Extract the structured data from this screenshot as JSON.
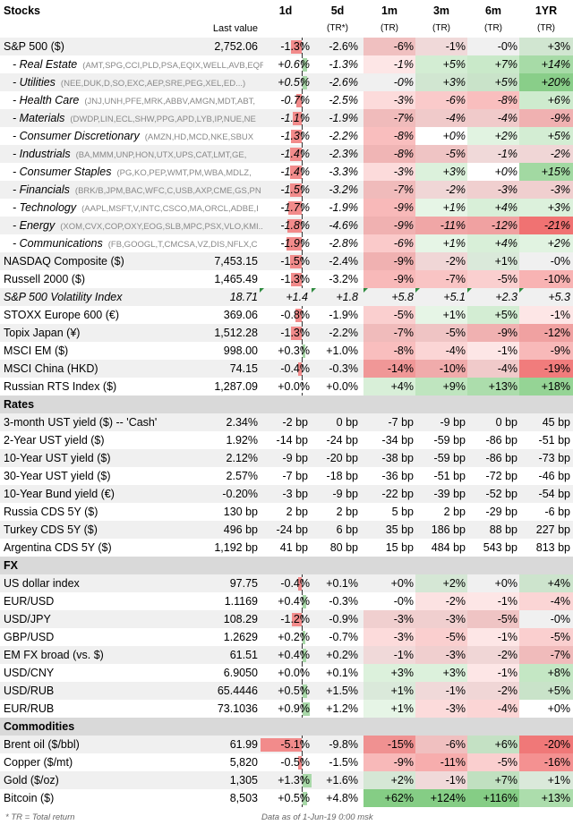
{
  "header": {
    "title": "Stocks",
    "last_value": "Last value",
    "periods": [
      "1d",
      "5d",
      "1m",
      "3m",
      "6m",
      "1YR"
    ],
    "subs": [
      "",
      "(TR*)",
      "(TR)",
      "(TR)",
      "(TR)",
      "(TR)"
    ]
  },
  "sections": [
    {
      "title": "Stocks",
      "rows": [
        {
          "name": "S&P 500 ($)",
          "value": "2,752.06",
          "d1": "-1.3%",
          "d1n": -1.3,
          "d5": "-2.6%",
          "m1": "-6%",
          "m3": "-1%",
          "m6": "-0%",
          "y1": "+3%"
        },
        {
          "name": "- Real Estate",
          "tick": "(AMT,SPG,CCI,PLD,PSA,EQIX,WELL,AVB,EQR",
          "sub": true,
          "value": "",
          "d1": "+0.6%",
          "d1n": 0.6,
          "d5": "-1.3%",
          "m1": "-1%",
          "m3": "+5%",
          "m6": "+7%",
          "y1": "+14%"
        },
        {
          "name": "- Utilities",
          "tick": "(NEE,DUK,D,SO,EXC,AEP,SRE,PEG,XEL,ED...)",
          "sub": true,
          "value": "",
          "d1": "+0.5%",
          "d1n": 0.5,
          "d5": "-2.6%",
          "m1": "-0%",
          "m3": "+3%",
          "m6": "+5%",
          "y1": "+20%"
        },
        {
          "name": "- Health Care",
          "tick": "(JNJ,UNH,PFE,MRK,ABBV,AMGN,MDT,ABT,",
          "sub": true,
          "value": "",
          "d1": "-0.7%",
          "d1n": -0.7,
          "d5": "-2.5%",
          "m1": "-3%",
          "m3": "-6%",
          "m6": "-8%",
          "y1": "+6%"
        },
        {
          "name": "- Materials",
          "tick": "(DWDP,LIN,ECL,SHW,PPG,APD,LYB,IP,NUE,NE",
          "sub": true,
          "value": "",
          "d1": "-1.1%",
          "d1n": -1.1,
          "d5": "-1.9%",
          "m1": "-7%",
          "m3": "-4%",
          "m6": "-4%",
          "y1": "-9%"
        },
        {
          "name": "- Consumer Discretionary",
          "tick": "(AMZN,HD,MCD,NKE,SBUX",
          "sub": true,
          "value": "",
          "d1": "-1.3%",
          "d1n": -1.3,
          "d5": "-2.2%",
          "m1": "-8%",
          "m3": "+0%",
          "m6": "+2%",
          "y1": "+5%"
        },
        {
          "name": "- Industrials",
          "tick": "(BA,MMM,UNP,HON,UTX,UPS,CAT,LMT,GE,",
          "sub": true,
          "value": "",
          "d1": "-1.4%",
          "d1n": -1.4,
          "d5": "-2.3%",
          "m1": "-8%",
          "m3": "-5%",
          "m6": "-1%",
          "y1": "-2%"
        },
        {
          "name": "- Consumer Staples",
          "tick": "(PG,KO,PEP,WMT,PM,WBA,MDLZ,",
          "sub": true,
          "value": "",
          "d1": "-1.4%",
          "d1n": -1.4,
          "d5": "-3.3%",
          "m1": "-3%",
          "m3": "+3%",
          "m6": "+0%",
          "y1": "+15%"
        },
        {
          "name": "- Financials",
          "tick": "(BRK/B,JPM,BAC,WFC,C,USB,AXP,CME,GS,PN",
          "sub": true,
          "value": "",
          "d1": "-1.5%",
          "d1n": -1.5,
          "d5": "-3.2%",
          "m1": "-7%",
          "m3": "-2%",
          "m6": "-3%",
          "y1": "-3%"
        },
        {
          "name": "- Technology",
          "tick": "(AAPL,MSFT,V,INTC,CSCO,MA,ORCL,ADBE,I",
          "sub": true,
          "value": "",
          "d1": "-1.7%",
          "d1n": -1.7,
          "d5": "-1.9%",
          "m1": "-9%",
          "m3": "+1%",
          "m6": "+4%",
          "y1": "+3%"
        },
        {
          "name": "- Energy",
          "tick": "(XOM,CVX,COP,OXY,EOG,SLB,MPC,PSX,VLO,KMI..",
          "sub": true,
          "value": "",
          "d1": "-1.8%",
          "d1n": -1.8,
          "d5": "-4.6%",
          "m1": "-9%",
          "m3": "-11%",
          "m6": "-12%",
          "y1": "-21%"
        },
        {
          "name": "- Communications",
          "tick": "(FB,GOOGL,T,CMCSA,VZ,DIS,NFLX,C",
          "sub": true,
          "value": "",
          "d1": "-1.9%",
          "d1n": -1.9,
          "d5": "-2.8%",
          "m1": "-6%",
          "m3": "+1%",
          "m6": "+4%",
          "y1": "+2%"
        },
        {
          "name": "NASDAQ Composite ($)",
          "value": "7,453.15",
          "d1": "-1.5%",
          "d1n": -1.5,
          "d5": "-2.4%",
          "m1": "-9%",
          "m3": "-2%",
          "m6": "+1%",
          "y1": "-0%"
        },
        {
          "name": "Russell 2000 ($)",
          "value": "1,465.49",
          "d1": "-1.3%",
          "d1n": -1.3,
          "d5": "-3.2%",
          "m1": "-9%",
          "m3": "-7%",
          "m6": "-5%",
          "y1": "-10%"
        },
        {
          "name": "S&P 500 Volatility Index",
          "ital": true,
          "value": "18.71",
          "d1": "+1.4",
          "d1n": 0,
          "plain": true,
          "d5": "+1.8",
          "m1": "+5.8",
          "m3": "+5.1",
          "m6": "+2.3",
          "y1": "+5.3"
        },
        {
          "name": "STOXX Europe 600 (€)",
          "value": "369.06",
          "d1": "-0.8%",
          "d1n": -0.8,
          "d5": "-1.9%",
          "m1": "-5%",
          "m3": "+1%",
          "m6": "+5%",
          "y1": "-1%"
        },
        {
          "name": "Topix Japan (¥)",
          "value": "1,512.28",
          "d1": "-1.3%",
          "d1n": -1.3,
          "d5": "-2.2%",
          "m1": "-7%",
          "m3": "-5%",
          "m6": "-9%",
          "y1": "-12%"
        },
        {
          "name": "MSCI EM ($)",
          "value": "998.00",
          "d1": "+0.3%",
          "d1n": 0.3,
          "d5": "+1.0%",
          "m1": "-8%",
          "m3": "-4%",
          "m6": "-1%",
          "y1": "-9%"
        },
        {
          "name": "MSCI China (HKD)",
          "value": "74.15",
          "d1": "-0.4%",
          "d1n": -0.4,
          "d5": "-0.3%",
          "m1": "-14%",
          "m3": "-10%",
          "m6": "-4%",
          "y1": "-19%"
        },
        {
          "name": "Russian RTS Index ($)",
          "value": "1,287.09",
          "d1": "+0.0%",
          "d1n": 0.0,
          "d5": "+0.0%",
          "m1": "+4%",
          "m3": "+9%",
          "m6": "+13%",
          "y1": "+18%"
        }
      ]
    },
    {
      "title": "Rates",
      "bp": true,
      "rows": [
        {
          "name": "3-month UST yield ($) -- 'Cash'",
          "value": "2.34%",
          "d1": "-2 bp",
          "d5": "0 bp",
          "m1": "-7 bp",
          "m3": "-9 bp",
          "m6": "0 bp",
          "y1": "45 bp"
        },
        {
          "name": "2-Year UST yield ($)",
          "value": "1.92%",
          "d1": "-14 bp",
          "d5": "-24 bp",
          "m1": "-34 bp",
          "m3": "-59 bp",
          "m6": "-86 bp",
          "y1": "-51 bp"
        },
        {
          "name": "10-Year UST yield ($)",
          "value": "2.12%",
          "d1": "-9 bp",
          "d5": "-20 bp",
          "m1": "-38 bp",
          "m3": "-59 bp",
          "m6": "-86 bp",
          "y1": "-73 bp"
        },
        {
          "name": "30-Year UST yield ($)",
          "value": "2.57%",
          "d1": "-7 bp",
          "d5": "-18 bp",
          "m1": "-36 bp",
          "m3": "-51 bp",
          "m6": "-72 bp",
          "y1": "-46 bp"
        },
        {
          "name": "10-Year Bund yield (€)",
          "value": "-0.20%",
          "d1": "-3 bp",
          "d5": "-9 bp",
          "m1": "-22 bp",
          "m3": "-39 bp",
          "m6": "-52 bp",
          "y1": "-54 bp"
        },
        {
          "name": "Russia CDS 5Y ($)",
          "value": "130 bp",
          "d1": "2 bp",
          "d5": "2 bp",
          "m1": "5 bp",
          "m3": "2 bp",
          "m6": "-29 bp",
          "y1": "-6 bp"
        },
        {
          "name": "Turkey CDS 5Y ($)",
          "value": "496 bp",
          "d1": "-24 bp",
          "d5": "6 bp",
          "m1": "35 bp",
          "m3": "186 bp",
          "m6": "88 bp",
          "y1": "227 bp"
        },
        {
          "name": "Argentina CDS 5Y ($)",
          "value": "1,192 bp",
          "d1": "41 bp",
          "d5": "80 bp",
          "m1": "15 bp",
          "m3": "484 bp",
          "m6": "543 bp",
          "y1": "813 bp"
        }
      ]
    },
    {
      "title": "FX",
      "rows": [
        {
          "name": "US dollar index",
          "value": "97.75",
          "d1": "-0.4%",
          "d1n": -0.4,
          "d5": "+0.1%",
          "m1": "+0%",
          "m3": "+2%",
          "m6": "+0%",
          "y1": "+4%"
        },
        {
          "name": "EUR/USD",
          "value": "1.1169",
          "d1": "+0.4%",
          "d1n": 0.4,
          "d5": "-0.3%",
          "m1": "-0%",
          "m3": "-2%",
          "m6": "-1%",
          "y1": "-4%"
        },
        {
          "name": "USD/JPY",
          "value": "108.29",
          "d1": "-1.2%",
          "d1n": -1.2,
          "d5": "-0.9%",
          "m1": "-3%",
          "m3": "-3%",
          "m6": "-5%",
          "y1": "-0%"
        },
        {
          "name": "GBP/USD",
          "value": "1.2629",
          "d1": "+0.2%",
          "d1n": 0.2,
          "d5": "-0.7%",
          "m1": "-3%",
          "m3": "-5%",
          "m6": "-1%",
          "y1": "-5%"
        },
        {
          "name": "EM FX broad (vs. $)",
          "value": "61.51",
          "d1": "+0.4%",
          "d1n": 0.4,
          "d5": "+0.2%",
          "m1": "-1%",
          "m3": "-3%",
          "m6": "-2%",
          "y1": "-7%"
        },
        {
          "name": "USD/CNY",
          "value": "6.9050",
          "d1": "+0.0%",
          "d1n": 0.0,
          "d5": "+0.1%",
          "m1": "+3%",
          "m3": "+3%",
          "m6": "-1%",
          "y1": "+8%"
        },
        {
          "name": "USD/RUB",
          "value": "65.4446",
          "d1": "+0.5%",
          "d1n": 0.5,
          "d5": "+1.5%",
          "m1": "+1%",
          "m3": "-1%",
          "m6": "-2%",
          "y1": "+5%"
        },
        {
          "name": "EUR/RUB",
          "value": "73.1036",
          "d1": "+0.9%",
          "d1n": 0.9,
          "d5": "+1.2%",
          "m1": "+1%",
          "m3": "-3%",
          "m6": "-4%",
          "y1": "+0%"
        }
      ]
    },
    {
      "title": "Commodities",
      "rows": [
        {
          "name": "Brent oil ($/bbl)",
          "value": "61.99",
          "d1": "-5.1%",
          "d1n": -5.1,
          "d5": "-9.8%",
          "m1": "-15%",
          "m3": "-6%",
          "m6": "+6%",
          "y1": "-20%"
        },
        {
          "name": "Copper ($/mt)",
          "value": "5,820",
          "d1": "-0.5%",
          "d1n": -0.5,
          "d5": "-1.5%",
          "m1": "-9%",
          "m3": "-11%",
          "m6": "-5%",
          "y1": "-16%"
        },
        {
          "name": "Gold ($/oz)",
          "value": "1,305",
          "d1": "+1.3%",
          "d1n": 1.3,
          "d5": "+1.6%",
          "m1": "+2%",
          "m3": "-1%",
          "m6": "+7%",
          "y1": "+1%"
        },
        {
          "name": "Bitcoin ($)",
          "value": "8,503",
          "d1": "+0.5%",
          "d1n": 0.5,
          "d5": "+4.8%",
          "m1": "+62%",
          "m3": "+124%",
          "m6": "+116%",
          "y1": "+13%"
        }
      ]
    }
  ],
  "footer": {
    "note": "* TR = Total return",
    "asof": "Data as of 1-Jun-19  0:00 msk"
  },
  "colors": {
    "neg": "#f28b8b",
    "pos": "#a8d8a8",
    "section": "#d9d9d9",
    "alt": "#f0f0f0"
  }
}
